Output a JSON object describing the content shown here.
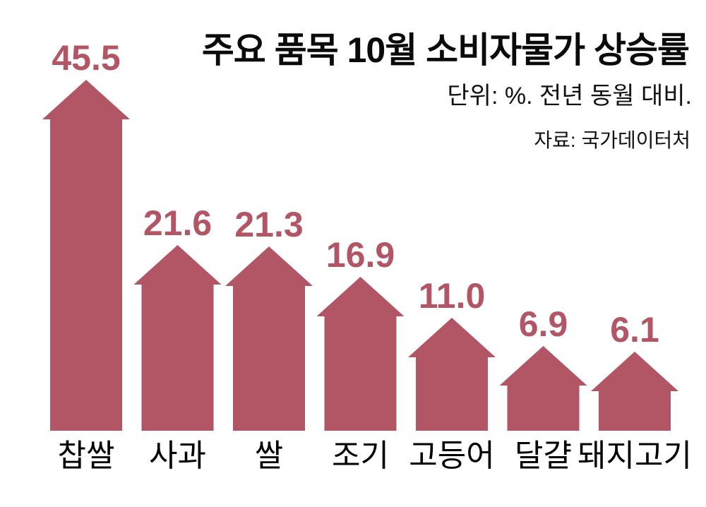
{
  "colors": {
    "accent": "#b25564",
    "text": "#0a0a0a",
    "background": "#ffffff"
  },
  "header": {
    "title": "주요 품목 10월 소비자물가 상승률",
    "subtitle": "단위: %. 전년 동월 대비.",
    "source": "자료: 국가데이터처"
  },
  "chart_data": {
    "type": "bar",
    "bar_style": "upward-arrow",
    "title": "주요 품목 10월 소비자물가 상승률",
    "unit_note": "단위: %. 전년 동월 대비.",
    "source": "자료: 국가데이터처",
    "categories": [
      "찹쌀",
      "사과",
      "쌀",
      "조기",
      "고등어",
      "달걀",
      "돼지고기"
    ],
    "values": [
      45.5,
      21.6,
      21.3,
      16.9,
      11.0,
      6.9,
      6.1
    ],
    "value_labels": [
      "45.5",
      "21.6",
      "21.3",
      "16.9",
      "11.0",
      "6.9",
      "6.1"
    ],
    "bar_color": "#b25564",
    "ylim": [
      0,
      50
    ],
    "grid": false,
    "legend": false,
    "value_label_position": "above-bar",
    "category_label_position": "below-bar"
  }
}
